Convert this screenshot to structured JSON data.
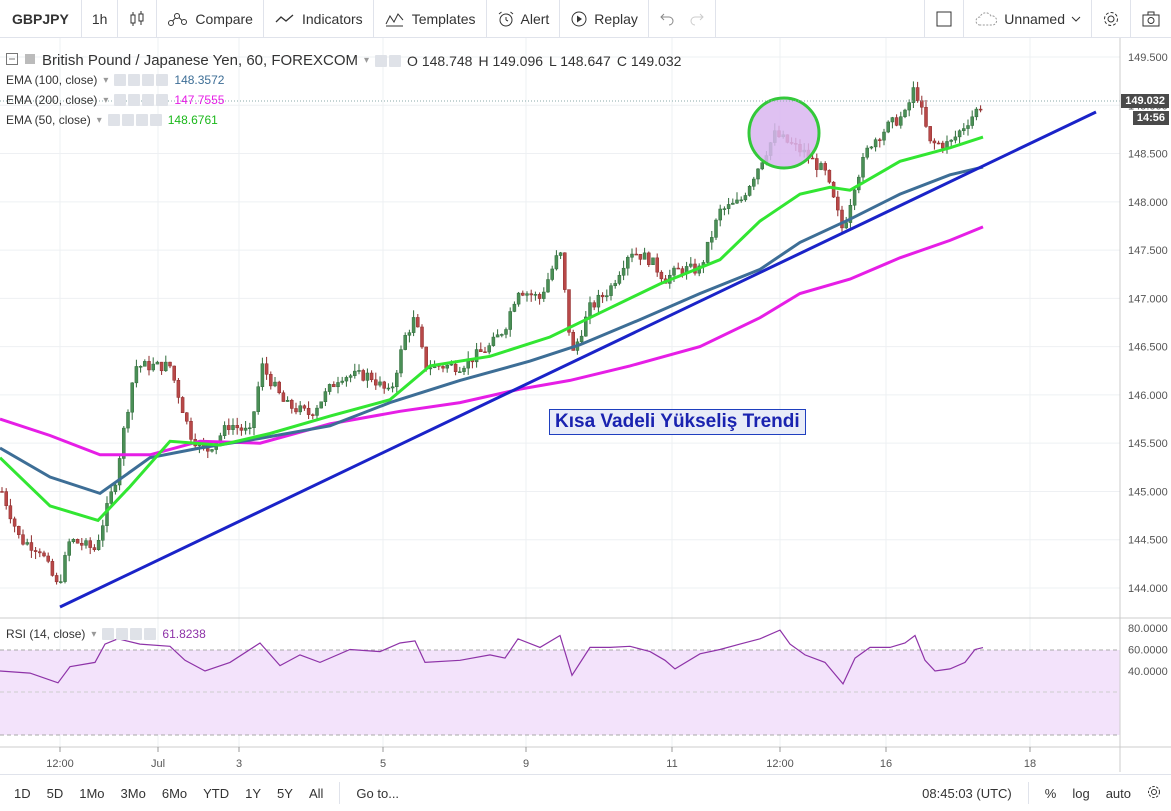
{
  "toolbar": {
    "symbol": "GBPJPY",
    "interval": "1h",
    "compare": "Compare",
    "indicators": "Indicators",
    "templates": "Templates",
    "alert": "Alert",
    "replay": "Replay",
    "layout_name": "Unnamed"
  },
  "legend": {
    "title": "British Pound / Japanese Yen, 60, FOREXCOM",
    "open": "O 148.748",
    "high": "H 149.096",
    "low": "L 148.647",
    "close": "C 149.032",
    "ema100_label": "EMA (100, close)",
    "ema100_value": "148.3572",
    "ema200_label": "EMA (200, close)",
    "ema200_value": "147.7555",
    "ema50_label": "EMA (50, close)",
    "ema50_value": "148.6761",
    "rsi_label": "RSI (14, close)",
    "rsi_value": "61.8238"
  },
  "colors": {
    "ema100": "#3d6e96",
    "ema200": "#e61ee6",
    "ema50": "#32e632",
    "trendline": "#1a23c8",
    "rsi": "#8e33a8",
    "rsi_band": "#f3e3fb",
    "candle_up": "#2f6b3a",
    "candle_down": "#8e2b2b"
  },
  "price_axis": {
    "ticks": [
      "149.500",
      "149.000",
      "148.500",
      "148.000",
      "147.500",
      "147.000",
      "146.500",
      "146.000",
      "145.500",
      "145.000",
      "144.500",
      "144.000"
    ],
    "last_price_tag": "149.032",
    "countdown_tag": "14:56"
  },
  "rsi_axis": {
    "ticks": [
      "80.0000",
      "60.0000",
      "40.0000"
    ]
  },
  "time_axis": {
    "ticks": [
      "12:00",
      "Jul",
      "3",
      "5",
      "9",
      "11",
      "12:00",
      "16",
      "18"
    ]
  },
  "annotation": {
    "text": "Kısa Vadeli Yükseliş Trendi"
  },
  "bottom": {
    "ranges": [
      "1D",
      "5D",
      "1Mo",
      "3Mo",
      "6Mo",
      "YTD",
      "1Y",
      "5Y",
      "All"
    ],
    "goto": "Go to...",
    "clock": "08:45:03 (UTC)",
    "percent": "%",
    "log": "log",
    "auto": "auto"
  }
}
